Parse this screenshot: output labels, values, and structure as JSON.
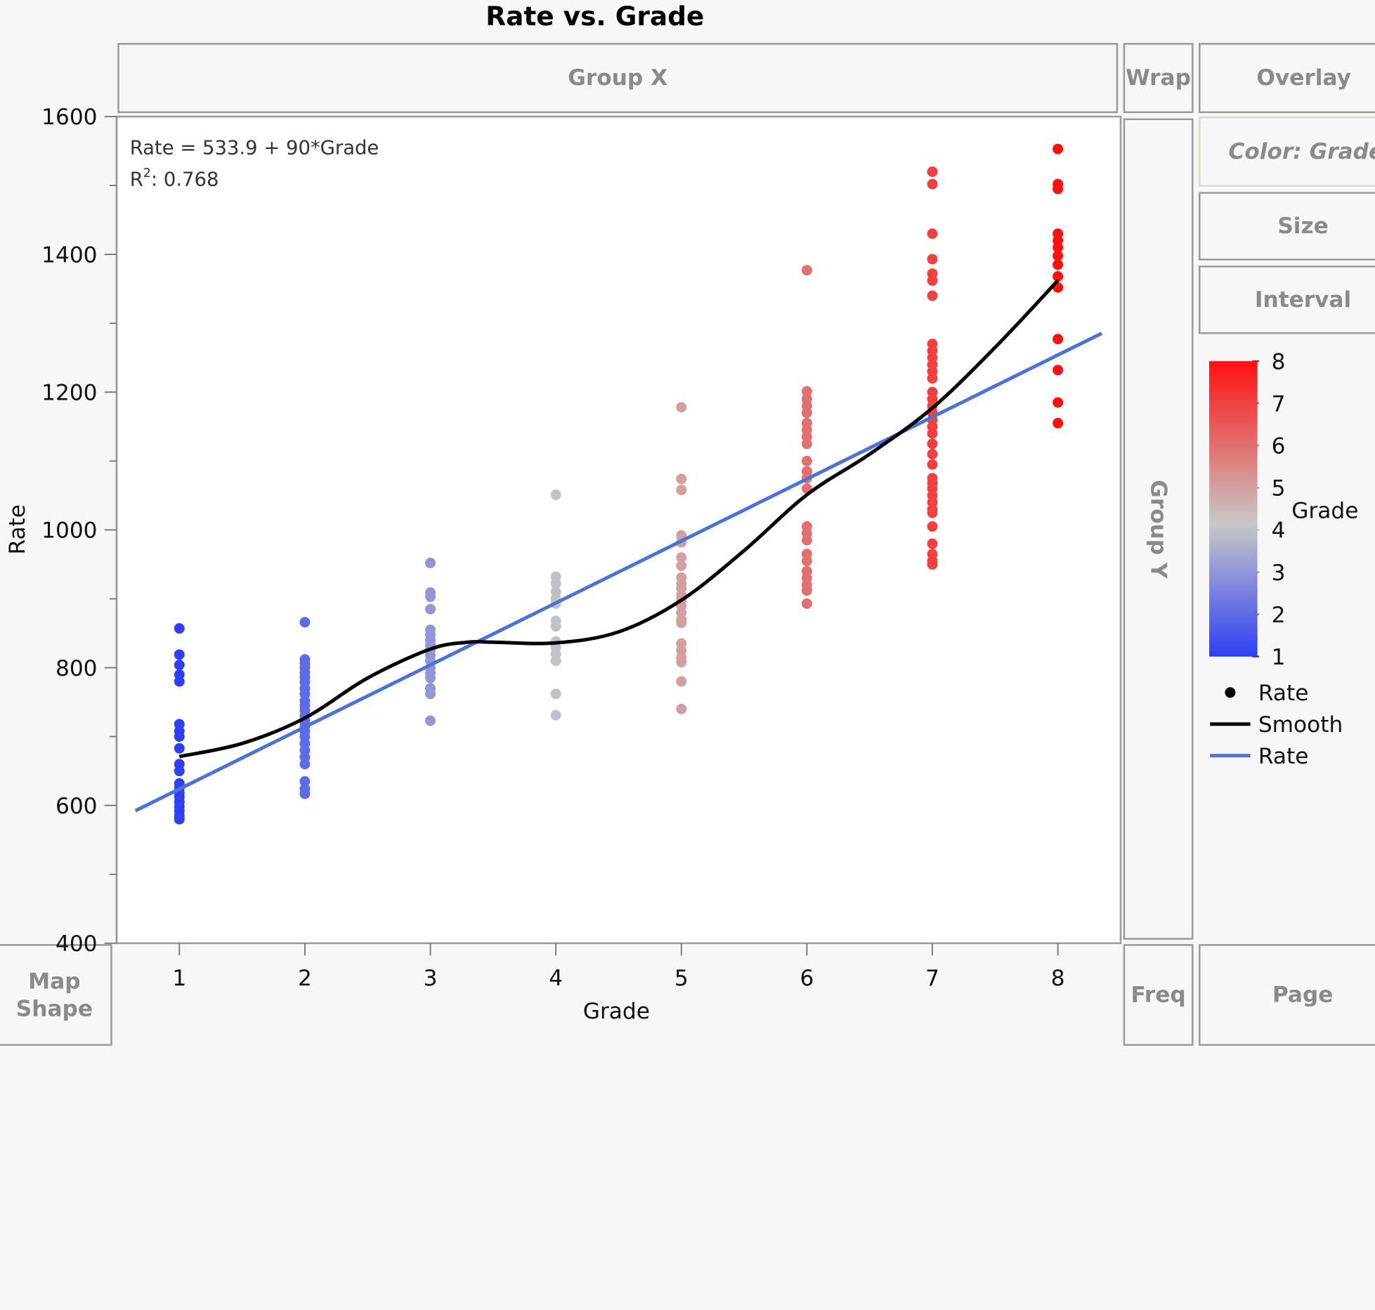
{
  "chart_data": {
    "type": "scatter",
    "title": "Rate vs. Grade",
    "xlabel": "Grade",
    "ylabel": "Rate",
    "xlim": [
      0.5,
      8.5
    ],
    "ylim": [
      400,
      1600
    ],
    "x_ticks": [
      1,
      2,
      3,
      4,
      5,
      6,
      7,
      8
    ],
    "y_ticks": [
      400,
      600,
      800,
      1000,
      1200,
      1400,
      1600
    ],
    "fit_equation": "Rate = 533.9 + 90*Grade",
    "r_squared_label": "R",
    "r_squared_sup": "2",
    "r_squared_value": ": 0.768",
    "fit_line": {
      "name": "Rate",
      "intercept": 533.9,
      "slope": 90,
      "x_range": [
        0.65,
        8.35
      ],
      "color": "#4a72d8"
    },
    "smooth": {
      "name": "Smooth",
      "color": "#000000",
      "points": [
        [
          1,
          671
        ],
        [
          1.5,
          690
        ],
        [
          2,
          727
        ],
        [
          2.5,
          785
        ],
        [
          3,
          827
        ],
        [
          3.3,
          837
        ],
        [
          3.5,
          837
        ],
        [
          4,
          836
        ],
        [
          4.5,
          852
        ],
        [
          5,
          898
        ],
        [
          5.5,
          970
        ],
        [
          6,
          1051
        ],
        [
          6.5,
          1110
        ],
        [
          7,
          1177
        ],
        [
          7.5,
          1265
        ],
        [
          8,
          1362
        ]
      ]
    },
    "series": [
      {
        "name": "Rate",
        "x": 1,
        "values": [
          857,
          819,
          804,
          790,
          780,
          718,
          708,
          700,
          683,
          660,
          650,
          632,
          625,
          618,
          612,
          605,
          598,
          592,
          585,
          580
        ]
      },
      {
        "name": "Rate",
        "x": 2,
        "values": [
          866,
          812,
          806,
          800,
          793,
          786,
          779,
          770,
          762,
          752,
          745,
          738,
          730,
          722,
          715,
          708,
          700,
          690,
          680,
          670,
          660,
          635,
          624,
          617
        ]
      },
      {
        "name": "Rate",
        "x": 3,
        "values": [
          952,
          909,
          903,
          885,
          855,
          848,
          840,
          833,
          826,
          818,
          810,
          800,
          792,
          785,
          770,
          762,
          723
        ]
      },
      {
        "name": "Rate",
        "x": 4,
        "values": [
          1051,
          932,
          922,
          910,
          900,
          893,
          868,
          860,
          838,
          830,
          820,
          810,
          762,
          731
        ]
      },
      {
        "name": "Rate",
        "x": 5,
        "values": [
          1178,
          1074,
          1058,
          992,
          982,
          960,
          948,
          931,
          922,
          915,
          905,
          898,
          890,
          880,
          870,
          865,
          835,
          825,
          815,
          808,
          780,
          740
        ]
      },
      {
        "name": "Rate",
        "x": 6,
        "values": [
          1377,
          1201,
          1190,
          1180,
          1170,
          1155,
          1145,
          1135,
          1125,
          1100,
          1085,
          1075,
          1060,
          1005,
          995,
          985,
          965,
          955,
          940,
          930,
          920,
          912,
          893
        ]
      },
      {
        "name": "Rate",
        "x": 7,
        "values": [
          1520,
          1502,
          1430,
          1393,
          1372,
          1362,
          1340,
          1270,
          1260,
          1250,
          1240,
          1230,
          1220,
          1200,
          1190,
          1180,
          1170,
          1160,
          1150,
          1140,
          1125,
          1110,
          1095,
          1075,
          1068,
          1060,
          1050,
          1040,
          1030,
          1025,
          1005,
          980,
          965,
          955,
          950
        ]
      },
      {
        "name": "Rate",
        "x": 8,
        "values": [
          1553,
          1502,
          1495,
          1430,
          1420,
          1410,
          1398,
          1385,
          1368,
          1352,
          1277,
          1232,
          1185,
          1155
        ]
      }
    ],
    "color_scale": {
      "variable": "Grade",
      "min": 1,
      "max": 8,
      "low_color": "#2e3ff5",
      "mid_color": "#c8c8c8",
      "high_color": "#ff1010",
      "ticks": [
        1,
        2,
        3,
        4,
        5,
        6,
        7,
        8
      ]
    },
    "legend_items": [
      {
        "label": "Rate",
        "symbol": "dot",
        "color": "#000000"
      },
      {
        "label": "Smooth",
        "symbol": "line",
        "color": "#000000"
      },
      {
        "label": "Rate",
        "symbol": "line",
        "color": "#4a72d8"
      }
    ],
    "grid": false,
    "legend_position": "right"
  },
  "drop_zones": {
    "group_x": "Group X",
    "wrap": "Wrap",
    "overlay": "Overlay",
    "color": "Color: Grade",
    "size": "Size",
    "interval": "Interval",
    "group_y": "Group Y",
    "map_shape_1": "Map",
    "map_shape_2": "Shape",
    "freq": "Freq",
    "page": "Page"
  }
}
